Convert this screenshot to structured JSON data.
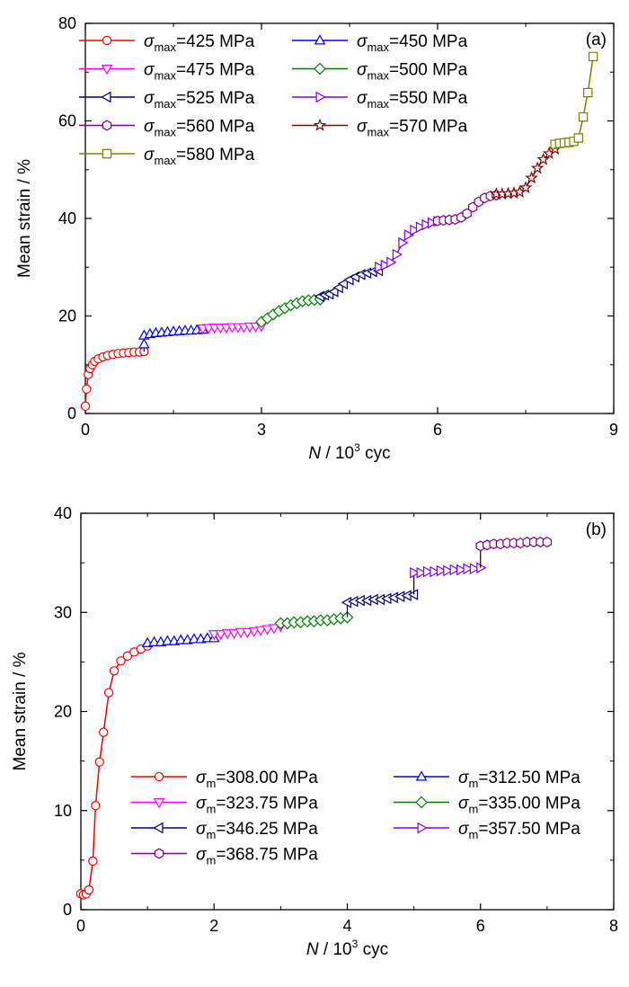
{
  "chart_data": [
    {
      "type": "line",
      "panel_label": "(a)",
      "xlabel_var": "N",
      "xlabel_rest": " / 10",
      "xlabel_sup": "3",
      "xlabel_unit": " cyc",
      "ylabel": "Mean strain / %",
      "xlim": [
        0,
        9
      ],
      "ylim": [
        0,
        80
      ],
      "xticks": [
        0,
        3,
        6,
        9
      ],
      "yticks": [
        0,
        20,
        40,
        60,
        80
      ],
      "xtick_labels": [
        "0",
        "3",
        "6",
        "9"
      ],
      "ytick_labels": [
        "0",
        "20",
        "40",
        "60",
        "80"
      ],
      "legend_position": "top-left",
      "legend_columns": 2,
      "grid": false,
      "series": [
        {
          "name": "=425 MPa",
          "sym": "σ",
          "sub": "max",
          "color": "#ff0000",
          "marker": "circle",
          "x": [
            0.0,
            0.02,
            0.05,
            0.08,
            0.12,
            0.16,
            0.22,
            0.3,
            0.38,
            0.47,
            0.56,
            0.65,
            0.74,
            0.83,
            0.92,
            1.0
          ],
          "y": [
            1.5,
            5.0,
            8.0,
            9.2,
            10.0,
            10.7,
            11.2,
            11.6,
            11.9,
            12.1,
            12.3,
            12.4,
            12.5,
            12.6,
            12.6,
            12.7
          ]
        },
        {
          "name": "=450 MPa",
          "sym": "σ",
          "sub": "max",
          "color": "#0000ff",
          "marker": "triangle-up",
          "x": [
            1.0,
            1.0,
            1.1,
            1.2,
            1.3,
            1.4,
            1.5,
            1.6,
            1.7,
            1.8,
            1.9,
            2.0
          ],
          "y": [
            14.2,
            16.0,
            16.3,
            16.5,
            16.6,
            16.7,
            16.8,
            16.9,
            17.0,
            17.0,
            17.1,
            17.2
          ]
        },
        {
          "name": "=475 MPa",
          "sym": "σ",
          "sub": "max",
          "color": "#ff00ff",
          "marker": "triangle-down",
          "x": [
            2.0,
            2.1,
            2.2,
            2.3,
            2.4,
            2.5,
            2.6,
            2.7,
            2.8,
            2.9,
            3.0
          ],
          "y": [
            17.4,
            17.5,
            17.6,
            17.6,
            17.6,
            17.7,
            17.7,
            17.7,
            17.8,
            17.8,
            17.9
          ]
        },
        {
          "name": "=500 MPa",
          "sym": "σ",
          "sub": "max",
          "color": "#008000",
          "marker": "diamond",
          "x": [
            3.0,
            3.1,
            3.2,
            3.3,
            3.4,
            3.5,
            3.6,
            3.7,
            3.8,
            3.9,
            4.0
          ],
          "y": [
            18.8,
            19.5,
            20.3,
            21.0,
            21.6,
            22.2,
            22.6,
            23.0,
            23.2,
            23.3,
            23.4
          ]
        },
        {
          "name": "=525 MPa",
          "sym": "σ",
          "sub": "max",
          "color": "#000080",
          "marker": "triangle-left",
          "x": [
            4.0,
            4.08,
            4.16,
            4.24,
            4.32,
            4.4,
            4.5,
            4.6,
            4.7,
            4.8,
            4.9,
            5.0
          ],
          "y": [
            24.0,
            24.3,
            24.5,
            25.0,
            25.8,
            26.6,
            27.4,
            28.0,
            28.5,
            28.8,
            29.1,
            29.3
          ]
        },
        {
          "name": "=550 MPa",
          "sym": "σ",
          "sub": "max",
          "color": "#8000ff",
          "marker": "triangle-right",
          "x": [
            5.0,
            5.1,
            5.2,
            5.3,
            5.4,
            5.5,
            5.6,
            5.7,
            5.8,
            5.9,
            6.0
          ],
          "y": [
            30.0,
            30.4,
            31.0,
            32.6,
            35.0,
            36.6,
            37.6,
            38.2,
            38.7,
            39.1,
            39.4
          ]
        },
        {
          "name": "=560 MPa",
          "sym": "σ",
          "sub": "max",
          "color": "#800080",
          "marker": "hexagon",
          "x": [
            6.0,
            6.1,
            6.2,
            6.3,
            6.4,
            6.5,
            6.6,
            6.7,
            6.8,
            6.9,
            7.0
          ],
          "y": [
            39.5,
            39.6,
            39.7,
            39.8,
            40.2,
            41.0,
            42.3,
            43.4,
            44.2,
            44.6,
            44.8
          ]
        },
        {
          "name": "=570 MPa",
          "sym": "σ",
          "sub": "max",
          "color": "#8b0000",
          "marker": "star",
          "x": [
            7.0,
            7.1,
            7.2,
            7.3,
            7.4,
            7.5,
            7.6,
            7.7,
            7.8,
            7.9,
            8.0
          ],
          "y": [
            45.0,
            45.0,
            45.1,
            45.2,
            45.4,
            46.3,
            48.3,
            50.3,
            52.1,
            53.3,
            54.2
          ]
        },
        {
          "name": "=580 MPa",
          "sym": "σ",
          "sub": "max",
          "color": "#808000",
          "marker": "square",
          "x": [
            8.0,
            8.08,
            8.16,
            8.24,
            8.32,
            8.4,
            8.48,
            8.56,
            8.65
          ],
          "y": [
            55.2,
            55.4,
            55.5,
            55.6,
            55.8,
            56.5,
            60.8,
            65.8,
            73.2
          ]
        }
      ]
    },
    {
      "type": "line",
      "panel_label": "(b)",
      "xlabel_var": "N",
      "xlabel_rest": " / 10",
      "xlabel_sup": "3",
      "xlabel_unit": " cyc",
      "ylabel": "Mean strain / %",
      "xlim": [
        0,
        8
      ],
      "ylim": [
        0,
        40
      ],
      "xticks": [
        0,
        2,
        4,
        6,
        8
      ],
      "yticks": [
        0,
        10,
        20,
        30,
        40
      ],
      "xtick_labels": [
        "0",
        "2",
        "4",
        "6",
        "8"
      ],
      "ytick_labels": [
        "0",
        "10",
        "20",
        "30",
        "40"
      ],
      "legend_position": "bottom-right",
      "legend_columns": 2,
      "grid": false,
      "series": [
        {
          "name": "=308.00 MPa",
          "sym": "σ",
          "sub": "m",
          "color": "#ff0000",
          "marker": "circle",
          "x": [
            0.0,
            0.04,
            0.08,
            0.12,
            0.18,
            0.22,
            0.28,
            0.34,
            0.42,
            0.5,
            0.6,
            0.7,
            0.8,
            0.9,
            1.0
          ],
          "y": [
            1.6,
            1.5,
            1.6,
            2.0,
            4.9,
            10.5,
            14.9,
            17.9,
            21.9,
            24.1,
            25.1,
            25.6,
            26.0,
            26.3,
            26.6
          ]
        },
        {
          "name": "=312.50 MPa",
          "sym": "σ",
          "sub": "m",
          "color": "#0000ff",
          "marker": "triangle-up",
          "x": [
            1.0,
            1.1,
            1.2,
            1.3,
            1.4,
            1.5,
            1.6,
            1.7,
            1.8,
            1.9,
            2.0
          ],
          "y": [
            26.9,
            27.0,
            27.0,
            27.1,
            27.1,
            27.2,
            27.2,
            27.3,
            27.3,
            27.4,
            27.4
          ]
        },
        {
          "name": "=323.75 MPa",
          "sym": "σ",
          "sub": "m",
          "color": "#ff00ff",
          "marker": "triangle-down",
          "x": [
            2.0,
            2.1,
            2.2,
            2.3,
            2.4,
            2.5,
            2.6,
            2.7,
            2.8,
            2.9,
            3.0
          ],
          "y": [
            27.8,
            27.8,
            27.9,
            27.9,
            28.0,
            28.0,
            28.1,
            28.2,
            28.3,
            28.4,
            28.6
          ]
        },
        {
          "name": "=335.00 MPa",
          "sym": "σ",
          "sub": "m",
          "color": "#008000",
          "marker": "diamond",
          "x": [
            3.0,
            3.1,
            3.2,
            3.3,
            3.4,
            3.5,
            3.6,
            3.7,
            3.8,
            3.9,
            4.0
          ],
          "y": [
            28.9,
            28.9,
            29.0,
            29.0,
            29.1,
            29.1,
            29.2,
            29.2,
            29.3,
            29.4,
            29.5
          ]
        },
        {
          "name": "=346.25 MPa",
          "sym": "σ",
          "sub": "m",
          "color": "#000080",
          "marker": "triangle-left",
          "x": [
            4.0,
            4.1,
            4.2,
            4.3,
            4.4,
            4.5,
            4.6,
            4.7,
            4.8,
            4.9,
            5.0
          ],
          "y": [
            31.0,
            31.1,
            31.2,
            31.2,
            31.3,
            31.3,
            31.4,
            31.5,
            31.6,
            31.7,
            31.8
          ]
        },
        {
          "name": "=357.50 MPa",
          "sym": "σ",
          "sub": "m",
          "color": "#8000ff",
          "marker": "triangle-right",
          "x": [
            5.0,
            5.1,
            5.2,
            5.3,
            5.4,
            5.5,
            5.6,
            5.7,
            5.8,
            5.9,
            6.0
          ],
          "y": [
            34.0,
            34.0,
            34.1,
            34.1,
            34.2,
            34.2,
            34.3,
            34.3,
            34.4,
            34.4,
            34.5
          ]
        },
        {
          "name": "=368.75 MPa",
          "sym": "σ",
          "sub": "m",
          "color": "#800080",
          "marker": "hexagon",
          "x": [
            6.0,
            6.1,
            6.2,
            6.3,
            6.4,
            6.5,
            6.6,
            6.7,
            6.8,
            6.9,
            7.0
          ],
          "y": [
            36.7,
            36.8,
            36.9,
            36.9,
            37.0,
            37.0,
            37.0,
            37.1,
            37.1,
            37.1,
            37.1
          ]
        }
      ]
    }
  ]
}
